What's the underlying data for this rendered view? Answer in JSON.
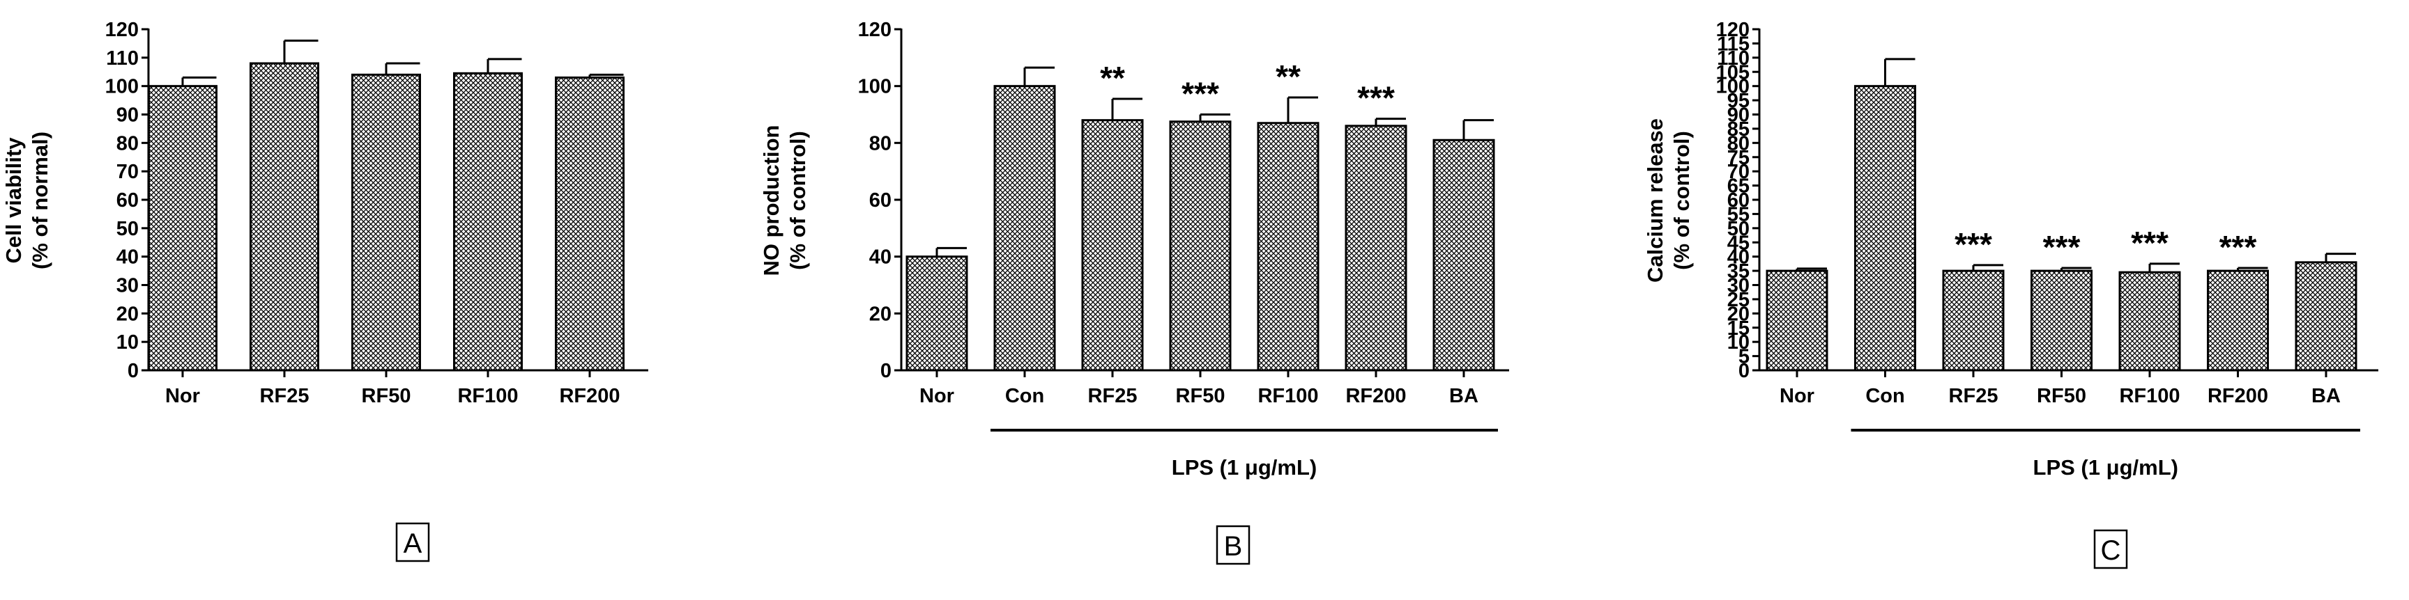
{
  "chart_data": [
    {
      "type": "bar",
      "panel": "A",
      "ylabel": [
        "Cell viability",
        "(% of normal)"
      ],
      "ylim": [
        0,
        120
      ],
      "yticks": [
        0,
        10,
        20,
        30,
        40,
        50,
        60,
        70,
        80,
        90,
        100,
        110,
        120
      ],
      "categories": [
        "Nor",
        "RF25",
        "RF50",
        "RF100",
        "RF200"
      ],
      "values": [
        100,
        108,
        104,
        104.5,
        103
      ],
      "errors": [
        3,
        8,
        4,
        5,
        1
      ],
      "significance": [
        "",
        "",
        "",
        "",
        ""
      ],
      "group_label": "",
      "group_span": null,
      "fill": "crosshatch",
      "color": "#000000"
    },
    {
      "type": "bar",
      "panel": "B",
      "ylabel": [
        "NO production",
        "(% of control)"
      ],
      "ylim": [
        0,
        120
      ],
      "yticks": [
        0,
        20,
        40,
        60,
        80,
        100,
        120
      ],
      "categories": [
        "Nor",
        "Con",
        "RF25",
        "RF50",
        "RF100",
        "RF200",
        "BA"
      ],
      "values": [
        40,
        100,
        88,
        87.5,
        87,
        86,
        81
      ],
      "errors": [
        3,
        6.5,
        7.5,
        2.5,
        9,
        2.5,
        7
      ],
      "significance": [
        "",
        "",
        "**",
        "***",
        "**",
        "***",
        ""
      ],
      "group_label": "LPS (1 μg/mL)",
      "group_span": [
        "Con",
        "BA"
      ],
      "fill": "crosshatch",
      "color": "#000000"
    },
    {
      "type": "bar",
      "panel": "C",
      "ylabel": [
        "Calcium release",
        "(% of control)"
      ],
      "ylim": [
        0,
        120
      ],
      "yticks": [
        0,
        5,
        10,
        15,
        20,
        25,
        30,
        35,
        40,
        45,
        50,
        55,
        60,
        65,
        70,
        75,
        80,
        85,
        90,
        95,
        100,
        105,
        110,
        115,
        120
      ],
      "categories": [
        "Nor",
        "Con",
        "RF25",
        "RF50",
        "RF100",
        "RF200",
        "BA"
      ],
      "values": [
        35,
        100,
        35,
        35,
        34.5,
        35,
        38
      ],
      "errors": [
        0.8,
        9.5,
        2,
        1,
        3,
        1,
        3
      ],
      "significance": [
        "",
        "",
        "***",
        "***",
        "***",
        "***",
        ""
      ],
      "group_label": "LPS (1 μg/mL)",
      "group_span": [
        "Con",
        "BA"
      ],
      "fill": "crosshatch",
      "color": "#000000"
    }
  ]
}
